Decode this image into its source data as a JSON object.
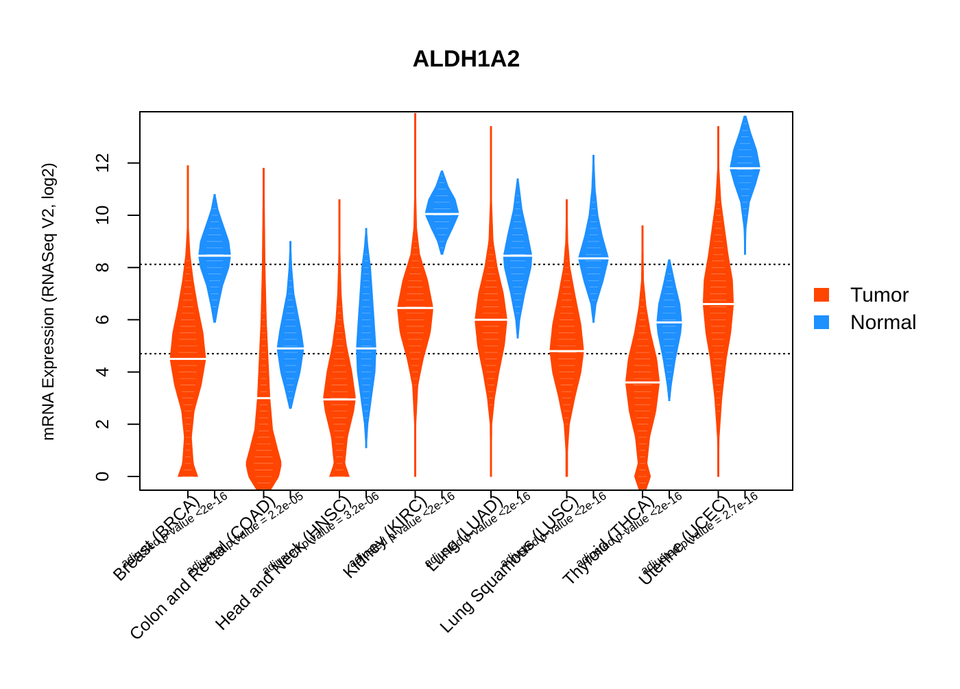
{
  "chart_data": {
    "type": "violin",
    "title": "ALDH1A2",
    "ylabel": "mRNA Expression (RNASeq V2, log2)",
    "xlabel": "",
    "ylim": [
      -0.55,
      13.95
    ],
    "yticks": [
      0,
      2,
      4,
      6,
      8,
      10,
      12
    ],
    "reference_lines": [
      8.12,
      4.7
    ],
    "legend": {
      "position": "right",
      "items": [
        "Tumor",
        "Normal"
      ]
    },
    "colors": {
      "tumor": "#ff4500",
      "normal": "#1e90ff",
      "median": "#ffffff"
    },
    "categories": [
      {
        "label": "Breast (BRCA)",
        "pvalue": "adjusted p-value <2e-16"
      },
      {
        "label": "Colon and Rectal (COAD)",
        "pvalue": "adjusted p-value = 2.2e-05"
      },
      {
        "label": "Head and Neck (HNSC)",
        "pvalue": "adjusted p-value = 3.2e-06"
      },
      {
        "label": "Kidney (KIRC)",
        "pvalue": "adjusted p-value <2e-16"
      },
      {
        "label": "Lung (LUAD)",
        "pvalue": "adjusted p-value <2e-16"
      },
      {
        "label": "Lung Squamous (LUSC)",
        "pvalue": "adjusted p-value <2e-16"
      },
      {
        "label": "Thyroid (THCA)",
        "pvalue": "adjusted p-value <2e-16"
      },
      {
        "label": "Uterine (UCEC)",
        "pvalue": "adjusted p-value = 2.7e-16"
      }
    ],
    "series": [
      {
        "name": "Tumor",
        "violins": [
          {
            "min": 0,
            "max": 11.9,
            "median": 4.5,
            "shape": [
              [
                0,
                0.55
              ],
              [
                0.5,
                0.3
              ],
              [
                1.5,
                0.2
              ],
              [
                2.5,
                0.35
              ],
              [
                3.5,
                0.75
              ],
              [
                4.5,
                1
              ],
              [
                5.5,
                0.85
              ],
              [
                6.5,
                0.55
              ],
              [
                7.5,
                0.3
              ],
              [
                8.5,
                0.12
              ],
              [
                9.5,
                0.04
              ],
              [
                11.9,
                0.02
              ]
            ]
          },
          {
            "min": -0.5,
            "max": 11.8,
            "median": 3.0,
            "shape": [
              [
                -0.5,
                0.4
              ],
              [
                0,
                0.85
              ],
              [
                0.5,
                1
              ],
              [
                1,
                0.8
              ],
              [
                1.8,
                0.5
              ],
              [
                3,
                0.35
              ],
              [
                4.5,
                0.25
              ],
              [
                6,
                0.15
              ],
              [
                8,
                0.08
              ],
              [
                10,
                0.05
              ],
              [
                11.8,
                0.02
              ]
            ]
          },
          {
            "min": 0,
            "max": 10.6,
            "median": 2.95,
            "shape": [
              [
                0,
                0.55
              ],
              [
                0.5,
                0.3
              ],
              [
                1.5,
                0.45
              ],
              [
                2.5,
                0.8
              ],
              [
                3,
                0.9
              ],
              [
                4,
                0.7
              ],
              [
                5,
                0.4
              ],
              [
                6,
                0.2
              ],
              [
                7,
                0.1
              ],
              [
                8.5,
                0.04
              ],
              [
                10.6,
                0.02
              ]
            ]
          },
          {
            "min": 0,
            "max": 13.9,
            "median": 6.45,
            "shape": [
              [
                0,
                0.02
              ],
              [
                2,
                0.04
              ],
              [
                3.5,
                0.15
              ],
              [
                4.5,
                0.45
              ],
              [
                5.5,
                0.85
              ],
              [
                6.45,
                1
              ],
              [
                7.5,
                0.7
              ],
              [
                8.5,
                0.25
              ],
              [
                9.5,
                0.08
              ],
              [
                11,
                0.03
              ],
              [
                13.9,
                0.01
              ]
            ]
          },
          {
            "min": 0,
            "max": 13.4,
            "median": 6.0,
            "shape": [
              [
                0,
                0.02
              ],
              [
                2,
                0.05
              ],
              [
                3,
                0.2
              ],
              [
                4,
                0.45
              ],
              [
                5,
                0.75
              ],
              [
                6,
                0.9
              ],
              [
                7,
                0.7
              ],
              [
                8,
                0.35
              ],
              [
                9,
                0.12
              ],
              [
                10.5,
                0.04
              ],
              [
                13.4,
                0.01
              ]
            ]
          },
          {
            "min": 0,
            "max": 10.6,
            "median": 4.8,
            "shape": [
              [
                0,
                0.05
              ],
              [
                1,
                0.05
              ],
              [
                2,
                0.15
              ],
              [
                3,
                0.45
              ],
              [
                4,
                0.8
              ],
              [
                4.8,
                0.95
              ],
              [
                5.8,
                0.8
              ],
              [
                7,
                0.45
              ],
              [
                8,
                0.18
              ],
              [
                9,
                0.06
              ],
              [
                10.6,
                0.02
              ]
            ]
          },
          {
            "min": -0.5,
            "max": 9.6,
            "median": 3.6,
            "shape": [
              [
                -0.5,
                0.2
              ],
              [
                0,
                0.45
              ],
              [
                0.5,
                0.25
              ],
              [
                1.5,
                0.4
              ],
              [
                2.5,
                0.75
              ],
              [
                3.6,
                0.95
              ],
              [
                4.5,
                0.8
              ],
              [
                5.5,
                0.45
              ],
              [
                6.5,
                0.2
              ],
              [
                7.5,
                0.06
              ],
              [
                9.6,
                0.02
              ]
            ]
          },
          {
            "min": 0,
            "max": 13.4,
            "median": 6.6,
            "shape": [
              [
                0,
                0.02
              ],
              [
                1.5,
                0.05
              ],
              [
                3,
                0.2
              ],
              [
                4.5,
                0.45
              ],
              [
                5.5,
                0.7
              ],
              [
                6.6,
                0.85
              ],
              [
                7.5,
                0.8
              ],
              [
                8.5,
                0.55
              ],
              [
                9.5,
                0.35
              ],
              [
                10.5,
                0.15
              ],
              [
                11.8,
                0.04
              ],
              [
                13.4,
                0.01
              ]
            ]
          }
        ]
      },
      {
        "name": "Normal",
        "violins": [
          {
            "min": 5.9,
            "max": 10.8,
            "median": 8.45,
            "shape": [
              [
                5.9,
                0.05
              ],
              [
                6.5,
                0.2
              ],
              [
                7.3,
                0.45
              ],
              [
                8,
                0.8
              ],
              [
                8.45,
                0.9
              ],
              [
                9,
                0.8
              ],
              [
                9.6,
                0.5
              ],
              [
                10.2,
                0.2
              ],
              [
                10.8,
                0.03
              ]
            ]
          },
          {
            "min": 2.6,
            "max": 9.0,
            "median": 4.9,
            "shape": [
              [
                2.6,
                0.05
              ],
              [
                3.2,
                0.25
              ],
              [
                4,
                0.55
              ],
              [
                4.9,
                0.75
              ],
              [
                5.6,
                0.6
              ],
              [
                6.3,
                0.4
              ],
              [
                7,
                0.2
              ],
              [
                8,
                0.08
              ],
              [
                9,
                0.02
              ]
            ]
          },
          {
            "min": 1.1,
            "max": 9.5,
            "median": 4.9,
            "shape": [
              [
                1.1,
                0.02
              ],
              [
                2,
                0.1
              ],
              [
                3,
                0.3
              ],
              [
                4,
                0.5
              ],
              [
                4.9,
                0.55
              ],
              [
                6,
                0.45
              ],
              [
                7,
                0.35
              ],
              [
                8,
                0.25
              ],
              [
                8.8,
                0.1
              ],
              [
                9.5,
                0.02
              ]
            ]
          },
          {
            "min": 8.5,
            "max": 11.7,
            "median": 10.05,
            "shape": [
              [
                8.5,
                0.05
              ],
              [
                9,
                0.25
              ],
              [
                9.5,
                0.6
              ],
              [
                10.05,
                0.95
              ],
              [
                10.6,
                0.75
              ],
              [
                11.1,
                0.35
              ],
              [
                11.7,
                0.04
              ]
            ]
          },
          {
            "min": 5.3,
            "max": 11.4,
            "median": 8.45,
            "shape": [
              [
                5.3,
                0.03
              ],
              [
                6,
                0.12
              ],
              [
                7,
                0.4
              ],
              [
                8,
                0.75
              ],
              [
                8.45,
                0.8
              ],
              [
                9.3,
                0.55
              ],
              [
                10.2,
                0.25
              ],
              [
                11.4,
                0.03
              ]
            ]
          },
          {
            "min": 5.9,
            "max": 12.3,
            "median": 8.35,
            "shape": [
              [
                5.9,
                0.03
              ],
              [
                6.6,
                0.15
              ],
              [
                7.5,
                0.55
              ],
              [
                8.35,
                0.85
              ],
              [
                9.2,
                0.5
              ],
              [
                10,
                0.25
              ],
              [
                11,
                0.1
              ],
              [
                12.3,
                0.02
              ]
            ]
          },
          {
            "min": 2.9,
            "max": 8.3,
            "median": 5.9,
            "shape": [
              [
                2.9,
                0.03
              ],
              [
                3.5,
                0.12
              ],
              [
                4.5,
                0.35
              ],
              [
                5.5,
                0.65
              ],
              [
                5.9,
                0.7
              ],
              [
                6.6,
                0.6
              ],
              [
                7.3,
                0.35
              ],
              [
                8.3,
                0.04
              ]
            ]
          },
          {
            "min": 8.5,
            "max": 13.8,
            "median": 11.8,
            "shape": [
              [
                8.5,
                0.02
              ],
              [
                9.5,
                0.06
              ],
              [
                10.5,
                0.25
              ],
              [
                11.2,
                0.6
              ],
              [
                11.8,
                0.85
              ],
              [
                12.5,
                0.65
              ],
              [
                13.2,
                0.3
              ],
              [
                13.8,
                0.06
              ]
            ]
          }
        ]
      }
    ]
  }
}
